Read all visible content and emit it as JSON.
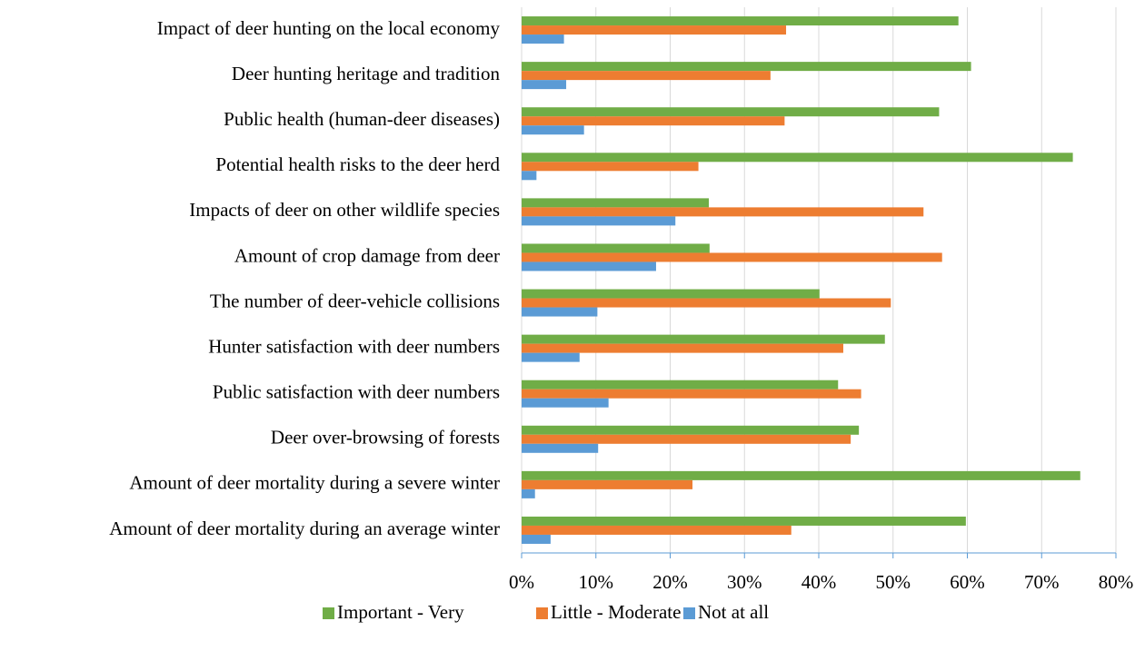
{
  "chart_data": {
    "type": "hbar",
    "categories": [
      "Impact of deer hunting on the local economy",
      "Deer hunting heritage and tradition",
      "Public health (human-deer diseases)",
      "Potential health risks to the deer herd",
      "Impacts of deer on other wildlife species",
      "Amount of crop damage from deer",
      "The number of deer-vehicle collisions",
      "Hunter satisfaction with deer numbers",
      "Public satisfaction with deer numbers",
      "Deer over-browsing of forests",
      "Amount of deer mortality during a severe winter",
      "Amount of deer mortality during an average winter"
    ],
    "series": [
      {
        "name": "Important - Very",
        "color": "#70ad47",
        "values": [
          58.8,
          60.5,
          56.2,
          74.2,
          25.2,
          25.3,
          40.1,
          48.9,
          42.6,
          45.4,
          75.2,
          59.8
        ]
      },
      {
        "name": "Little - Moderate",
        "color": "#ed7d31",
        "values": [
          35.6,
          33.5,
          35.4,
          23.8,
          54.1,
          56.6,
          49.7,
          43.3,
          45.7,
          44.3,
          23.0,
          36.3
        ]
      },
      {
        "name": "Not at all",
        "color": "#5b9bd5",
        "values": [
          5.7,
          6.0,
          8.4,
          2.0,
          20.7,
          18.1,
          10.2,
          7.8,
          11.7,
          10.3,
          1.8,
          3.9
        ]
      }
    ],
    "xlim": [
      0,
      80
    ],
    "xticks": [
      {
        "value": 0,
        "label": "0%"
      },
      {
        "value": 10,
        "label": "10%"
      },
      {
        "value": 20,
        "label": "20%"
      },
      {
        "value": 30,
        "label": "30%"
      },
      {
        "value": 40,
        "label": "40%"
      },
      {
        "value": 50,
        "label": "50%"
      },
      {
        "value": 60,
        "label": "60%"
      },
      {
        "value": 70,
        "label": "70%"
      },
      {
        "value": 80,
        "label": "80%"
      }
    ],
    "grid": true,
    "legend": "bottom"
  }
}
